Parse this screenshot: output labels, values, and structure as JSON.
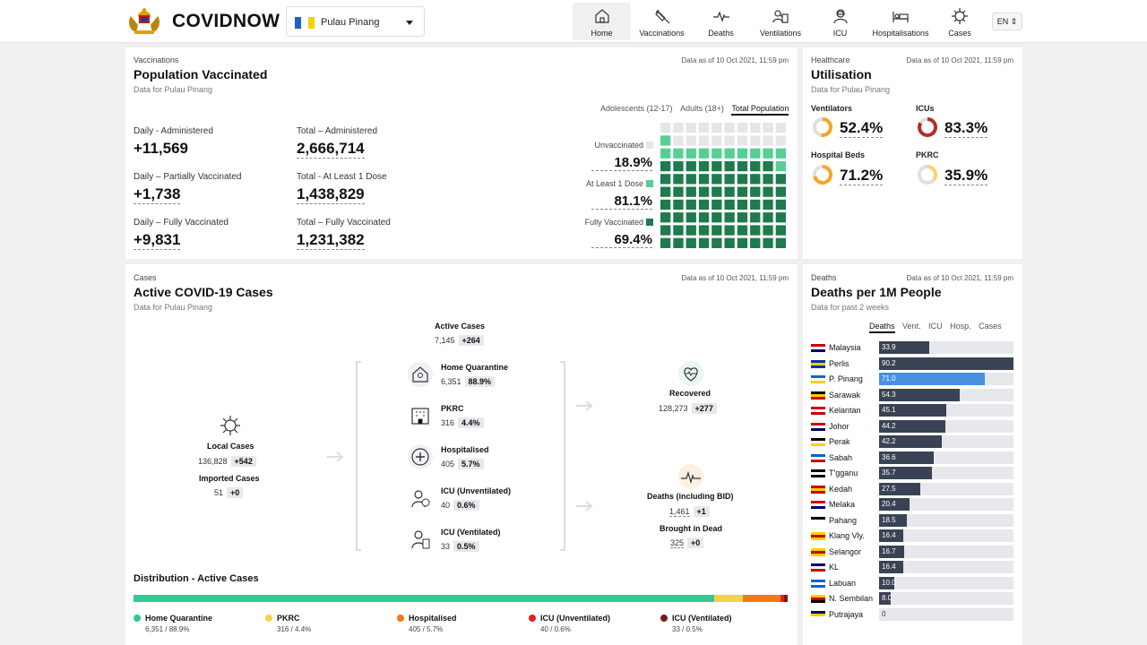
{
  "brand": "COVIDNOW",
  "state_select": {
    "value": "Pulau Pinang"
  },
  "nav": [
    {
      "label": "Home",
      "icon": "home-icon",
      "active": true
    },
    {
      "label": "Vaccinations",
      "icon": "syringe-icon"
    },
    {
      "label": "Deaths",
      "icon": "pulse-icon"
    },
    {
      "label": "Ventilations",
      "icon": "ventilator-icon"
    },
    {
      "label": "ICU",
      "icon": "icu-icon"
    },
    {
      "label": "Hospitalisations",
      "icon": "hospital-bed-icon"
    },
    {
      "label": "Cases",
      "icon": "virus-icon"
    }
  ],
  "lang": "EN",
  "vaccination": {
    "category": "Vaccinations",
    "title": "Population Vaccinated",
    "subtitle": "Data for Pulau Pinang",
    "as_of": "Data as of 10 Oct 2021, 11:59 pm",
    "stats": [
      {
        "label": "Daily - Administered",
        "value": "+11,569"
      },
      {
        "label": "Total – Administered",
        "value": "2,666,714"
      },
      {
        "label": "Daily – Partially Vaccinated",
        "value": "+1,738"
      },
      {
        "label": "Total - At Least 1 Dose",
        "value": "1,438,829"
      },
      {
        "label": "Daily – Fully Vaccinated",
        "value": "+9,831"
      },
      {
        "label": "Total – Fully Vaccinated",
        "value": "1,231,382"
      }
    ],
    "tabs": [
      "Adolescents (12-17)",
      "Adults (18+)",
      "Total Population"
    ],
    "selected_tab": "Total Population",
    "waffle": [
      {
        "label": "Unvaccinated",
        "value": "18.9%",
        "color": "#e6e6e6"
      },
      {
        "label": "At Least 1 Dose",
        "value": "81.1%",
        "color": "#56cf94"
      },
      {
        "label": "Fully Vaccinated",
        "value": "69.4%",
        "color": "#1f7a4d"
      }
    ],
    "waffle_counts": {
      "unvaccinated": 19,
      "partial": 12,
      "full": 69
    }
  },
  "utilisation": {
    "category": "Healthcare",
    "title": "Utilisation",
    "subtitle": "Data for Pulau Pinang",
    "as_of": "Data as of 10 Oct 2021, 11:59 pm",
    "items": [
      {
        "label": "Ventilators",
        "value": "52.4%",
        "pct": 52.4,
        "color": "#f5a623"
      },
      {
        "label": "ICUs",
        "value": "83.3%",
        "pct": 83.3,
        "color": "#b32d2e"
      },
      {
        "label": "Hospital Beds",
        "value": "71.2%",
        "pct": 71.2,
        "color": "#f5a623"
      },
      {
        "label": "PKRC",
        "value": "35.9%",
        "pct": 35.9,
        "color": "#f5d76e"
      }
    ]
  },
  "cases": {
    "category": "Cases",
    "title": "Active COVID-19 Cases",
    "subtitle": "Data for Pulau Pinang",
    "as_of": "Data as of 10 Oct 2021, 11:59 pm",
    "active": {
      "label": "Active Cases",
      "value": "7,145",
      "delta": "+264"
    },
    "local": {
      "label": "Local Cases",
      "value": "136,828",
      "delta": "+542"
    },
    "imported": {
      "label": "Imported Cases",
      "value": "51",
      "delta": "+0"
    },
    "breakdown": [
      {
        "label": "Home Quarantine",
        "value": "6,351",
        "pct": "88.9%"
      },
      {
        "label": "PKRC",
        "value": "316",
        "pct": "4.4%"
      },
      {
        "label": "Hospitalised",
        "value": "405",
        "pct": "5.7%"
      },
      {
        "label": "ICU (Unventilated)",
        "value": "40",
        "pct": "0.6%"
      },
      {
        "label": "ICU (Ventilated)",
        "value": "33",
        "pct": "0.5%"
      }
    ],
    "recovered": {
      "label": "Recovered",
      "value": "128,273",
      "delta": "+277"
    },
    "deaths": {
      "label": "Deaths (including BID)",
      "value": "1,461",
      "delta": "+1"
    },
    "bid": {
      "label": "Brought in Dead",
      "value": "325",
      "delta": "+0"
    },
    "distribution": {
      "title": "Distribution - Active Cases",
      "items": [
        {
          "label": "Home Quarantine",
          "sub": "6,351 / 88.9%",
          "pct": 88.9,
          "color": "#2ecc8f"
        },
        {
          "label": "PKRC",
          "sub": "316 / 4.4%",
          "pct": 4.4,
          "color": "#f5d14e"
        },
        {
          "label": "Hospitalised",
          "sub": "405 / 5.7%",
          "pct": 5.7,
          "color": "#f07a1a"
        },
        {
          "label": "ICU (Unventilated)",
          "sub": "40 / 0.6%",
          "pct": 0.6,
          "color": "#e02020"
        },
        {
          "label": "ICU (Ventilated)",
          "sub": "33 / 0.5%",
          "pct": 0.5,
          "color": "#7a1a1a"
        }
      ]
    }
  },
  "deaths_per_1m": {
    "category": "Deaths",
    "title": "Deaths per 1M People",
    "subtitle": "Data for past 2 weeks",
    "as_of": "Data as of 10 Oct 2021, 11:59 pm",
    "tabs": [
      "Deaths",
      "Vent.",
      "ICU",
      "Hosp.",
      "Cases"
    ],
    "selected_tab": "Deaths",
    "max": 90.2,
    "rows": [
      {
        "name": "Malaysia",
        "value": "33.9",
        "v": 33.9
      },
      {
        "name": "Perlis",
        "value": "90.2",
        "v": 90.2
      },
      {
        "name": "P. Pinang",
        "value": "71.0",
        "v": 71.0,
        "highlight": true
      },
      {
        "name": "Sarawak",
        "value": "54.3",
        "v": 54.3
      },
      {
        "name": "Kelantan",
        "value": "45.1",
        "v": 45.1
      },
      {
        "name": "Johor",
        "value": "44.2",
        "v": 44.2
      },
      {
        "name": "Perak",
        "value": "42.2",
        "v": 42.2
      },
      {
        "name": "Sabah",
        "value": "36.6",
        "v": 36.6
      },
      {
        "name": "T'gganu",
        "value": "35.7",
        "v": 35.7
      },
      {
        "name": "Kedah",
        "value": "27.5",
        "v": 27.5
      },
      {
        "name": "Melaka",
        "value": "20.4",
        "v": 20.4
      },
      {
        "name": "Pahang",
        "value": "18.5",
        "v": 18.5
      },
      {
        "name": "Klang Vly.",
        "value": "16.4",
        "v": 16.4
      },
      {
        "name": "Selangor",
        "value": "16.7",
        "v": 16.7
      },
      {
        "name": "KL",
        "value": "16.4",
        "v": 16.4
      },
      {
        "name": "Labuan",
        "value": "10.0",
        "v": 10.0
      },
      {
        "name": "N. Sembilan",
        "value": "8.0",
        "v": 8.0
      },
      {
        "name": "Putrajaya",
        "value": "0",
        "v": 0
      }
    ],
    "colors": {
      "bar": "#3a4354",
      "highlight": "#4a90e2",
      "track": "#e6e8ec"
    }
  }
}
